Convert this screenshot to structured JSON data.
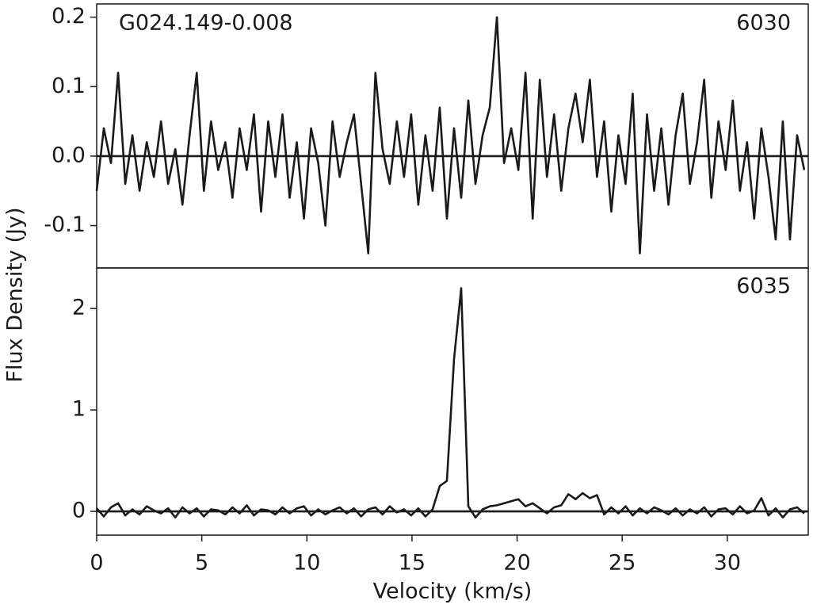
{
  "ylabel": "Flux Density (Jy)",
  "chart_data": [
    {
      "type": "line",
      "source": "G024.149-0.008",
      "label": "6030",
      "color": "#1a1a1a",
      "x": [
        0,
        0.34,
        0.68,
        1.02,
        1.36,
        1.7,
        2.04,
        2.38,
        2.72,
        3.06,
        3.4,
        3.74,
        4.08,
        4.42,
        4.76,
        5.1,
        5.44,
        5.78,
        6.12,
        6.46,
        6.8,
        7.14,
        7.48,
        7.82,
        8.16,
        8.5,
        8.84,
        9.18,
        9.52,
        9.86,
        10.2,
        10.54,
        10.88,
        11.22,
        11.56,
        11.9,
        12.24,
        12.58,
        12.92,
        13.26,
        13.6,
        13.94,
        14.28,
        14.62,
        14.96,
        15.3,
        15.64,
        15.98,
        16.32,
        16.66,
        17,
        17.34,
        17.68,
        18.02,
        18.36,
        18.7,
        19.04,
        19.38,
        19.72,
        20.06,
        20.4,
        20.74,
        21.08,
        21.42,
        21.76,
        22.1,
        22.44,
        22.78,
        23.12,
        23.46,
        23.8,
        24.14,
        24.48,
        24.82,
        25.16,
        25.5,
        25.84,
        26.18,
        26.52,
        26.86,
        27.2,
        27.54,
        27.88,
        28.22,
        28.56,
        28.9,
        29.24,
        29.58,
        29.92,
        30.26,
        30.6,
        30.94,
        31.28,
        31.62,
        31.96,
        32.3,
        32.64,
        32.98,
        33.32,
        33.66
      ],
      "values": [
        -0.05,
        0.04,
        -0.01,
        0.12,
        -0.04,
        0.03,
        -0.05,
        0.02,
        -0.03,
        0.05,
        -0.04,
        0.01,
        -0.07,
        0.03,
        0.12,
        -0.05,
        0.05,
        -0.02,
        0.02,
        -0.06,
        0.04,
        -0.02,
        0.06,
        -0.08,
        0.05,
        -0.03,
        0.06,
        -0.06,
        0.02,
        -0.09,
        0.04,
        -0.01,
        -0.1,
        0.05,
        -0.03,
        0.02,
        0.06,
        -0.04,
        -0.14,
        0.12,
        0.01,
        -0.04,
        0.05,
        -0.03,
        0.06,
        -0.07,
        0.03,
        -0.05,
        0.07,
        -0.09,
        0.04,
        -0.06,
        0.08,
        -0.04,
        0.03,
        0.07,
        0.2,
        -0.01,
        0.04,
        -0.02,
        0.12,
        -0.09,
        0.11,
        -0.03,
        0.06,
        -0.05,
        0.04,
        0.09,
        0.02,
        0.11,
        -0.03,
        0.05,
        -0.08,
        0.03,
        -0.04,
        0.09,
        -0.14,
        0.06,
        -0.05,
        0.04,
        -0.07,
        0.03,
        0.09,
        -0.04,
        0.02,
        0.11,
        -0.06,
        0.05,
        -0.02,
        0.08,
        -0.05,
        0.02,
        -0.09,
        0.04,
        -0.03,
        -0.12,
        0.05,
        -0.12,
        0.03,
        -0.02
      ],
      "xlim": [
        0,
        33.85
      ],
      "ylim": [
        -0.161,
        0.219
      ],
      "yticks": [
        0.2,
        0.1,
        {
          "value": 0,
          "label": "0.0"
        },
        -0.1
      ]
    },
    {
      "type": "line",
      "label": "6035",
      "color": "#1a1a1a",
      "xlabel": "Velocity (km/s)",
      "x": [
        0,
        0.34,
        0.68,
        1.02,
        1.36,
        1.7,
        2.04,
        2.38,
        2.72,
        3.06,
        3.4,
        3.74,
        4.08,
        4.42,
        4.76,
        5.1,
        5.44,
        5.78,
        6.12,
        6.46,
        6.8,
        7.14,
        7.48,
        7.82,
        8.16,
        8.5,
        8.84,
        9.18,
        9.52,
        9.86,
        10.2,
        10.54,
        10.88,
        11.22,
        11.56,
        11.9,
        12.24,
        12.58,
        12.92,
        13.26,
        13.6,
        13.94,
        14.28,
        14.62,
        14.96,
        15.3,
        15.64,
        15.98,
        16.32,
        16.66,
        17,
        17.34,
        17.68,
        18.02,
        18.36,
        18.7,
        19.04,
        19.38,
        19.72,
        20.06,
        20.4,
        20.74,
        21.08,
        21.42,
        21.76,
        22.1,
        22.44,
        22.78,
        23.12,
        23.46,
        23.8,
        24.14,
        24.48,
        24.82,
        25.16,
        25.5,
        25.84,
        26.18,
        26.52,
        26.86,
        27.2,
        27.54,
        27.88,
        28.22,
        28.56,
        28.9,
        29.24,
        29.58,
        29.92,
        30.26,
        30.6,
        30.94,
        31.28,
        31.62,
        31.96,
        32.3,
        32.64,
        32.98,
        33.32,
        33.66
      ],
      "values": [
        0.03,
        -0.05,
        0.04,
        0.08,
        -0.04,
        0.02,
        -0.03,
        0.05,
        0.01,
        -0.02,
        0.03,
        -0.06,
        0.04,
        -0.02,
        0.03,
        -0.05,
        0.02,
        0.01,
        -0.03,
        0.04,
        -0.02,
        0.06,
        -0.04,
        0.02,
        0.01,
        -0.03,
        0.04,
        -0.02,
        0.03,
        0.05,
        -0.04,
        0.02,
        -0.03,
        0.01,
        0.04,
        -0.02,
        0.03,
        -0.05,
        0.02,
        0.04,
        -0.03,
        0.05,
        -0.01,
        0.02,
        -0.04,
        0.03,
        -0.05,
        0.02,
        0.25,
        0.3,
        1.5,
        2.2,
        0.05,
        -0.06,
        0.02,
        0.05,
        0.06,
        0.08,
        0.1,
        0.12,
        0.05,
        0.08,
        0.03,
        -0.02,
        0.04,
        0.06,
        0.17,
        0.12,
        0.18,
        0.13,
        0.16,
        -0.03,
        0.04,
        -0.02,
        0.05,
        -0.04,
        0.03,
        -0.02,
        0.04,
        0.01,
        -0.03,
        0.03,
        -0.04,
        0.02,
        -0.02,
        0.04,
        -0.05,
        0.02,
        0.03,
        -0.03,
        0.05,
        -0.02,
        0.01,
        0.13,
        -0.04,
        0.03,
        -0.06,
        0.02,
        0.04,
        -0.02
      ],
      "xlim": [
        0,
        33.85
      ],
      "ylim": [
        -0.234,
        2.4
      ],
      "yticks": [
        0,
        1,
        2
      ],
      "xticks": [
        0,
        5,
        10,
        15,
        20,
        25,
        30
      ]
    }
  ]
}
